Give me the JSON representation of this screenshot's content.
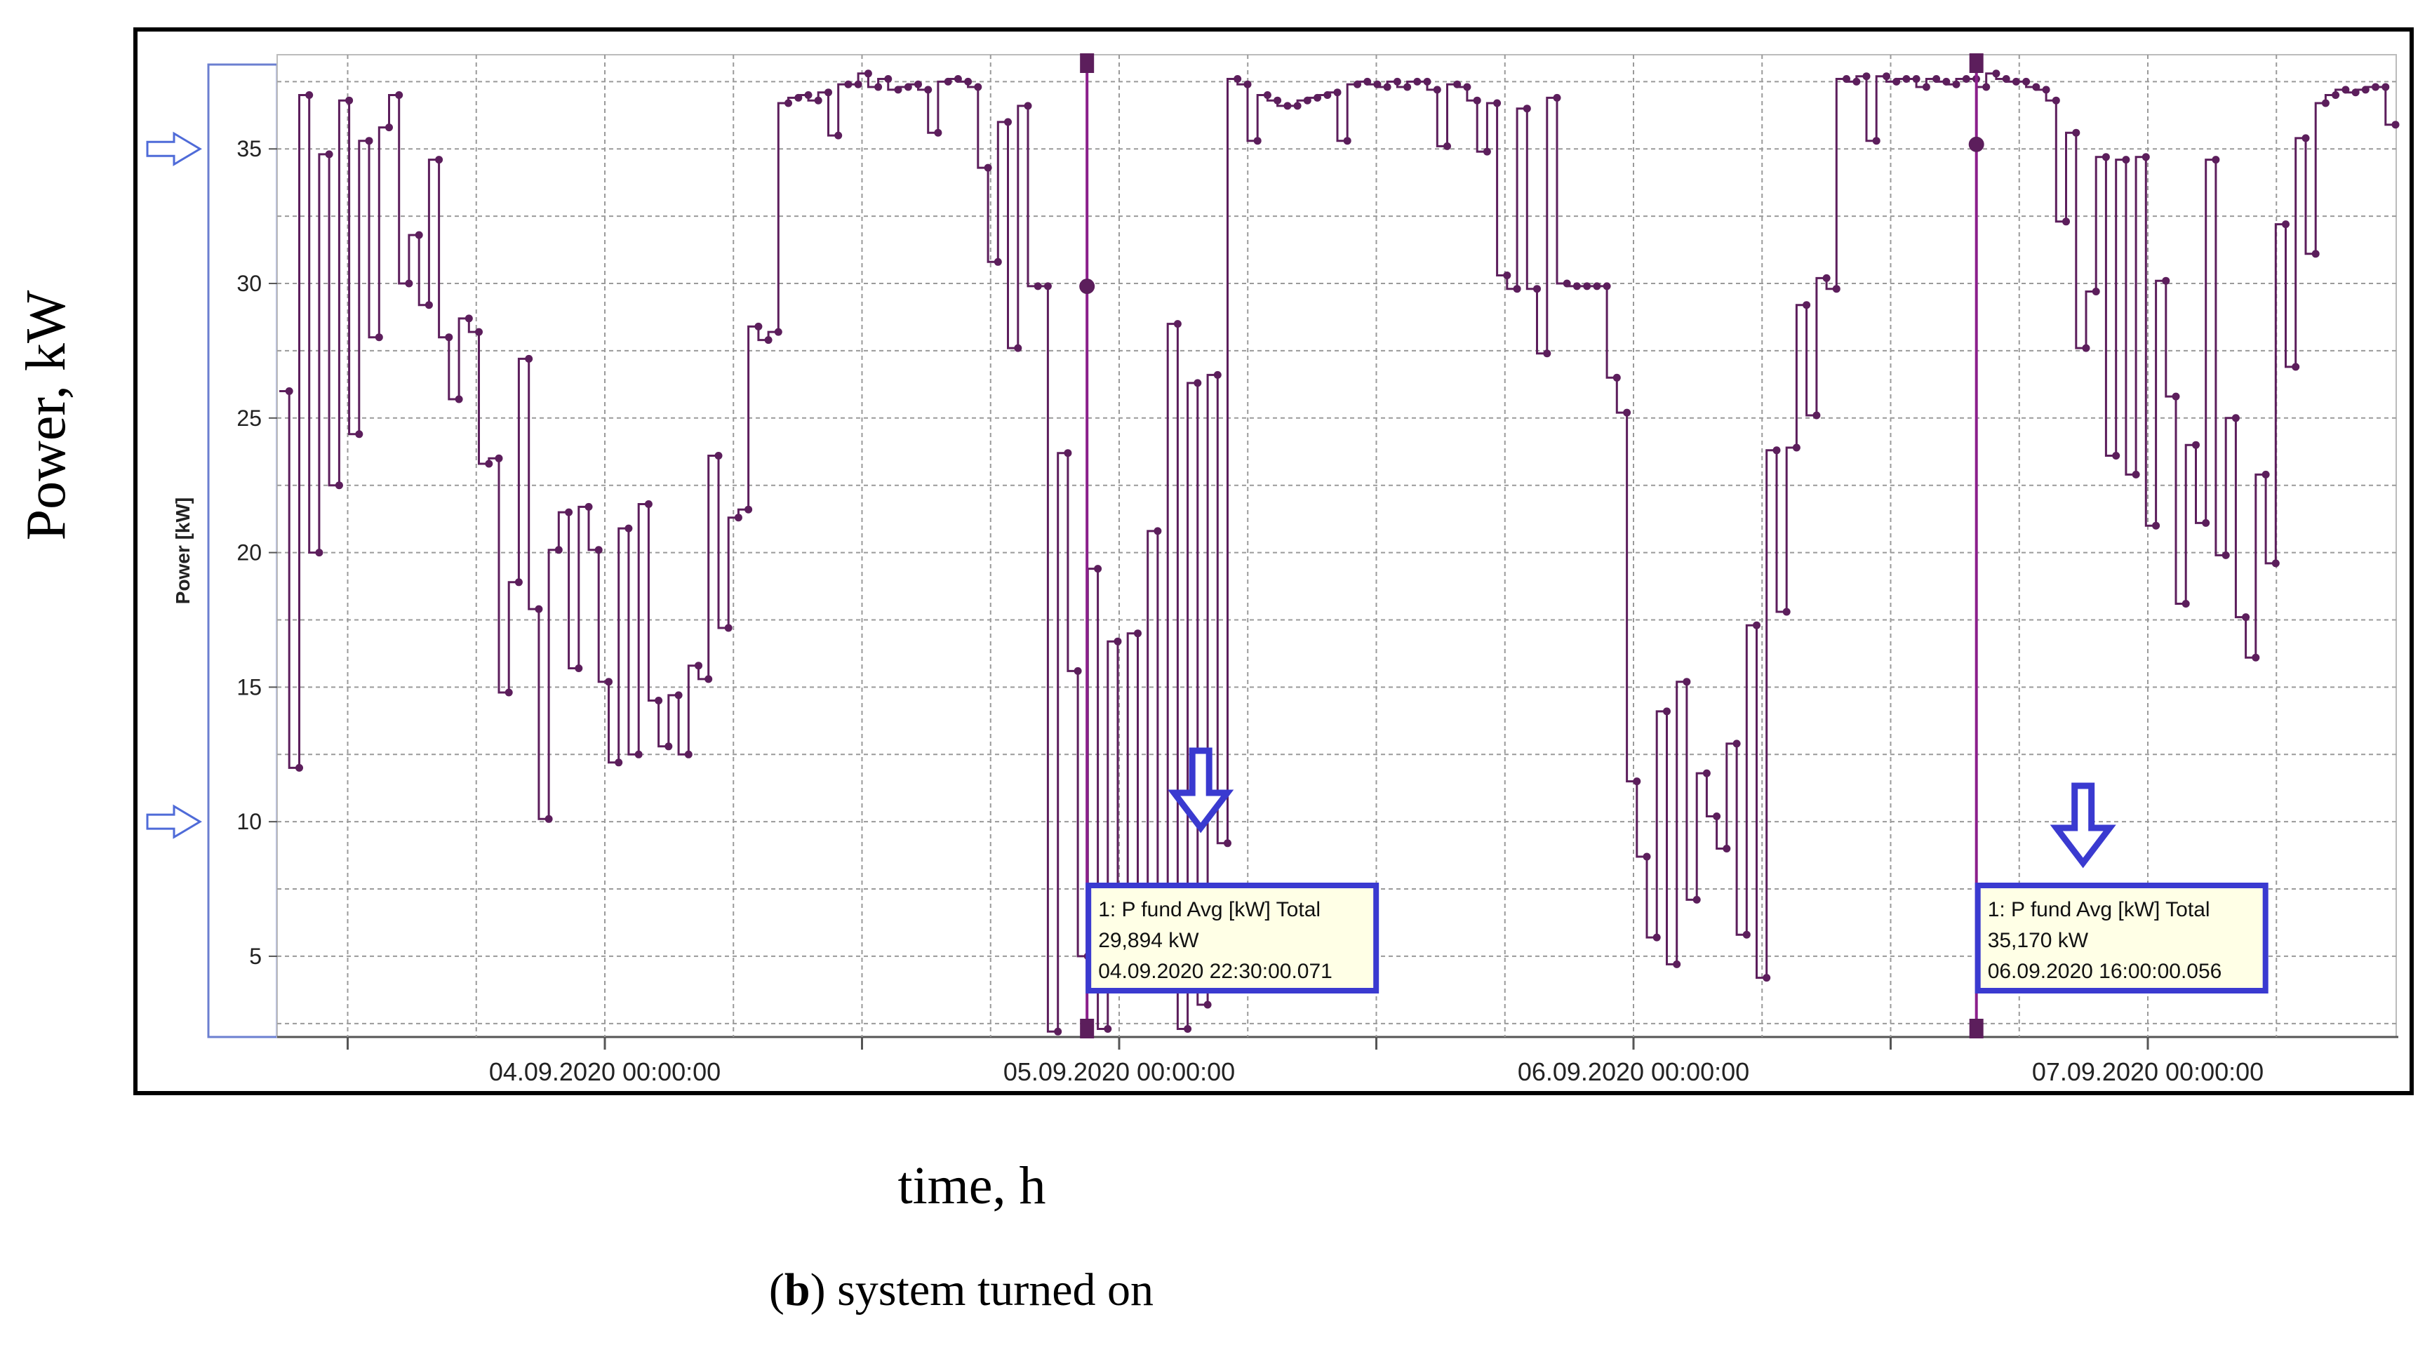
{
  "figure": {
    "outer_ylabel": "Power, kW",
    "outer_xlabel": "time, h",
    "caption_letter": "b",
    "caption_text": " system turned on"
  },
  "chart_data": {
    "type": "line",
    "step": true,
    "ylabel": "Power [kW]",
    "ylim": [
      2,
      38.5
    ],
    "yticks": [
      5,
      10,
      15,
      20,
      25,
      30,
      35
    ],
    "xlim": [
      -0.66,
      3.47
    ],
    "xticks": [
      0,
      1,
      2,
      3
    ],
    "xtick_labels": [
      "04.09.2020 00:00:00",
      "05.09.2020 00:00:00",
      "06.09.2020 00:00:00",
      "07.09.2020 00:00:00"
    ],
    "grid": true,
    "line_color": "#5c1e5c",
    "marker_color": "#5c1e5c",
    "limit_arrows": [
      35,
      10
    ],
    "series": [
      {
        "values": [
          26,
          12,
          37,
          20,
          34.8,
          22.5,
          36.8,
          24.4,
          35.3,
          28,
          35.8,
          37,
          30,
          31.8,
          29.2,
          34.6,
          28,
          25.7,
          28.7,
          28.2,
          23.3,
          23.5,
          14.8,
          18.9,
          27.2,
          17.9,
          10.1,
          20.1,
          21.5,
          15.7,
          21.7,
          20.1,
          15.2,
          12.2,
          20.9,
          12.5,
          21.8,
          14.5,
          12.8,
          14.7,
          12.5,
          15.8,
          15.3,
          23.6,
          17.2,
          21.3,
          21.6,
          28.4,
          27.9,
          28.2,
          36.7,
          36.9,
          37,
          36.8,
          37.1,
          35.5,
          37.4,
          37.4,
          37.8,
          37.3,
          37.6,
          37.2,
          37.3,
          37.4,
          37.2,
          35.6,
          37.5,
          37.6,
          37.5,
          37.3,
          34.3,
          30.8,
          36,
          27.6,
          36.6,
          29.9,
          29.9,
          2.2,
          23.7,
          15.6,
          5,
          19.4,
          2.3,
          16.7,
          4.5,
          17,
          5.3,
          20.8,
          4.8,
          28.5,
          2.3,
          26.3,
          3.2,
          26.6,
          9.2,
          37.6,
          37.4,
          35.3,
          37,
          36.8,
          36.6,
          36.6,
          36.8,
          36.9,
          37,
          37.1,
          35.3,
          37.4,
          37.5,
          37.4,
          37.3,
          37.5,
          37.3,
          37.5,
          37.5,
          37.2,
          35.1,
          37.4,
          37.3,
          36.8,
          34.9,
          36.7,
          30.3,
          29.8,
          36.5,
          29.8,
          27.4,
          36.9,
          30,
          29.9,
          29.9,
          29.9,
          29.9,
          26.5,
          25.2,
          11.5,
          8.7,
          5.7,
          14.1,
          4.7,
          15.2,
          7.1,
          11.8,
          10.2,
          9,
          12.9,
          5.8,
          17.3,
          4.2,
          23.8,
          17.8,
          23.9,
          29.2,
          25.1,
          30.2,
          29.8,
          37.6,
          37.5,
          37.7,
          35.3,
          37.7,
          37.5,
          37.6,
          37.6,
          37.3,
          37.6,
          37.5,
          37.4,
          37.6,
          37.6,
          37.3,
          37.8,
          37.6,
          37.5,
          37.5,
          37.3,
          37.2,
          36.8,
          32.3,
          35.6,
          27.6,
          29.7,
          34.7,
          23.6,
          34.6,
          22.9,
          34.7,
          21,
          30.1,
          25.8,
          18.1,
          24,
          21.1,
          34.6,
          19.9,
          25,
          17.6,
          16.1,
          22.9,
          19.6,
          32.2,
          26.9,
          35.4,
          31.1,
          36.7,
          37,
          37.2,
          37.1,
          37.2,
          37.3,
          37.3,
          35.9
        ]
      }
    ],
    "cursors": [
      {
        "x": 0.9375,
        "value": 29.894,
        "label_line1": "1: P fund Avg [kW] Total",
        "label_line2": "29,894 kW",
        "label_line3": "04.09.2020 22:30:00.071"
      },
      {
        "x": 2.6667,
        "value": 35.17,
        "label_line1": "1: P fund Avg [kW] Total",
        "label_line2": "35,170 kW",
        "label_line3": "06.09.2020 16:00:00.056"
      }
    ]
  }
}
